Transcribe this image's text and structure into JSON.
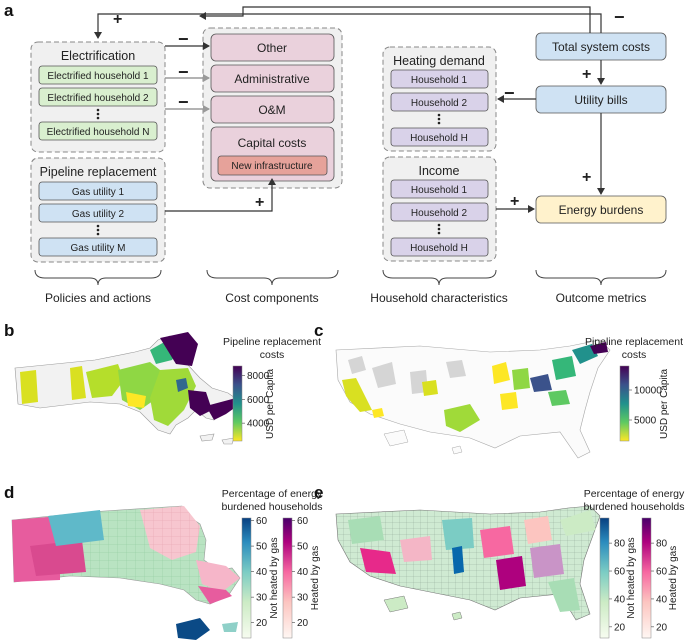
{
  "panel_a": {
    "letter": "a",
    "electrification": {
      "title": "Electrification",
      "items": [
        "Electrified household 1",
        "Electrified household 2",
        "Electrified household N"
      ]
    },
    "pipeline": {
      "title": "Pipeline replacement",
      "items": [
        "Gas utility 1",
        "Gas utility 2",
        "Gas utility M"
      ]
    },
    "cost": {
      "items": [
        "Other",
        "Administrative",
        "O&M"
      ],
      "capital": "Capital costs",
      "new_infra": "New infrastructure"
    },
    "heating": {
      "title": "Heating demand",
      "items": [
        "Household 1",
        "Household 2",
        "Household H"
      ]
    },
    "income": {
      "title": "Income",
      "items": [
        "Household 1",
        "Household 2",
        "Household H"
      ]
    },
    "outcomes": {
      "total": "Total system costs",
      "bills": "Utility bills",
      "burdens": "Energy burdens"
    },
    "signs": {
      "plus": "+",
      "minus": "−"
    },
    "categories": [
      "Policies and actions",
      "Cost components",
      "Household characteristics",
      "Outcome metrics"
    ]
  },
  "panel_b": {
    "letter": "b",
    "legend_title_1": "Pipeline replacement",
    "legend_title_2": "costs",
    "axis_label": "USD per Capita",
    "ticks": [
      "4000",
      "6000",
      "8000"
    ]
  },
  "panel_c": {
    "letter": "c",
    "legend_title_1": "Pipeline replacement",
    "legend_title_2": "costs",
    "axis_label": "USD per Capita",
    "ticks": [
      "5000",
      "10000"
    ]
  },
  "panel_d": {
    "letter": "d",
    "legend_title_1": "Percentage of energy",
    "legend_title_2": "burdened households",
    "left_label": "Not heated by gas",
    "right_label": "Heated by gas",
    "left_ticks": [
      "20",
      "30",
      "40",
      "50",
      "60"
    ],
    "right_ticks": [
      "20",
      "30",
      "40",
      "50",
      "60"
    ]
  },
  "panel_e": {
    "letter": "e",
    "legend_title_1": "Percentage of energy",
    "legend_title_2": "burdened households",
    "left_label": "Not heated by gas",
    "right_label": "Heated by gas",
    "left_ticks": [
      "20",
      "40",
      "60",
      "80"
    ],
    "right_ticks": [
      "20",
      "40",
      "60",
      "80"
    ]
  },
  "colors": {
    "green_box": "#d9efcf",
    "blue_box": "#cfe2f3",
    "pink_box": "#ead1dc",
    "salmon_box": "#e6a29a",
    "lavender_box": "#d9d2e9",
    "yellow_box": "#fff2cc",
    "plus": "#e06666",
    "minus": "#6fa8dc"
  }
}
